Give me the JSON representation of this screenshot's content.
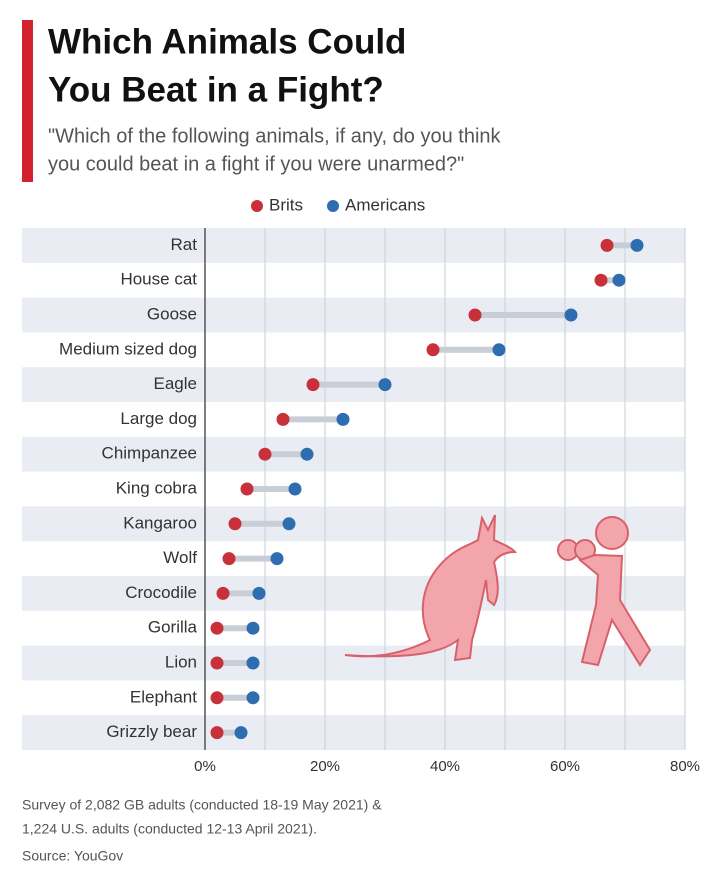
{
  "chart_data": {
    "type": "dumbbell",
    "title_lines": [
      "Which Animals Could",
      "You Beat in a Fight?"
    ],
    "subtitle_lines": [
      "\"Which of the following animals, if any, do you think",
      "you could beat in a fight if you were unarmed?\""
    ],
    "categories": [
      "Rat",
      "House cat",
      "Goose",
      "Medium sized dog",
      "Eagle",
      "Large dog",
      "Chimpanzee",
      "King cobra",
      "Kangaroo",
      "Wolf",
      "Crocodile",
      "Gorilla",
      "Lion",
      "Elephant",
      "Grizzly bear"
    ],
    "series": [
      {
        "name": "Brits",
        "color": "#c8303a",
        "values": [
          67,
          66,
          45,
          38,
          18,
          13,
          10,
          7,
          5,
          4,
          3,
          2,
          2,
          2,
          2
        ]
      },
      {
        "name": "Americans",
        "color": "#2e6db0",
        "values": [
          72,
          69,
          61,
          49,
          30,
          23,
          17,
          15,
          14,
          12,
          9,
          8,
          8,
          8,
          6
        ]
      }
    ],
    "xlim": [
      0,
      80
    ],
    "xticks": [
      {
        "value": 0,
        "label": "0%"
      },
      {
        "value": 20,
        "label": "20%"
      },
      {
        "value": 40,
        "label": "40%"
      },
      {
        "value": 60,
        "label": "60%"
      },
      {
        "value": 80,
        "label": "80%"
      }
    ],
    "minor_xticks": [
      10,
      30,
      50,
      70
    ],
    "grid": true,
    "legend": "top",
    "notes": [
      "Survey of 2,082 GB adults (conducted 18-19 May 2021) &",
      "1,224 U.S. adults (conducted 12-13 April 2021)."
    ],
    "source": "Source: YouGov"
  }
}
